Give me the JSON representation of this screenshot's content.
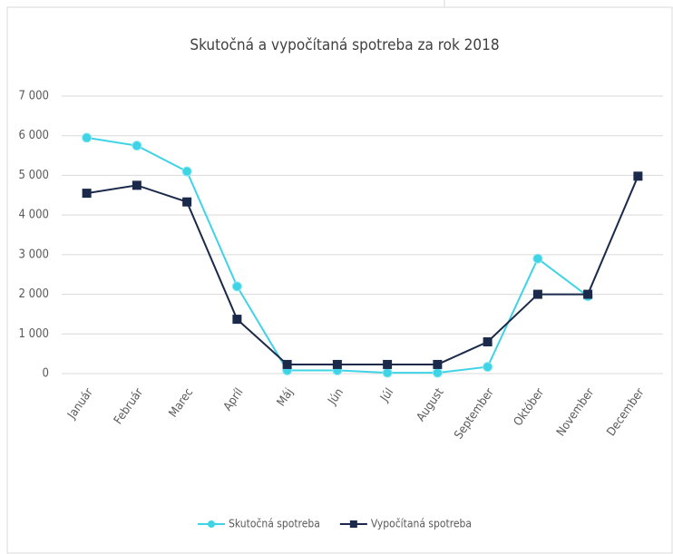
{
  "chart_data": {
    "type": "line",
    "title": "Skutočná a vypočítaná spotreba za rok 2018",
    "categories": [
      "Január",
      "Február",
      "Marec",
      "Apríl",
      "Máj",
      "Jún",
      "Júl",
      "August",
      "September",
      "Október",
      "November",
      "December"
    ],
    "series": [
      {
        "name": "Skutočná spotreba",
        "color": "#3fd3e6",
        "marker": "circle",
        "values": [
          5950,
          5750,
          5100,
          2200,
          80,
          80,
          20,
          20,
          170,
          2900,
          1950,
          null
        ]
      },
      {
        "name": "Vypočítaná spotreba",
        "color": "#1b2a4a",
        "marker": "square",
        "values": [
          4550,
          4750,
          4330,
          1370,
          230,
          230,
          230,
          230,
          800,
          2000,
          2000,
          4980
        ]
      }
    ],
    "ylim": [
      0,
      7000
    ],
    "yticks": [
      0,
      {
        "value": 1000,
        "label": "1 000"
      },
      {
        "value": 2000,
        "label": "2 000"
      },
      {
        "value": 3000,
        "label": "3 000"
      },
      {
        "value": 4000,
        "label": "4 000"
      },
      {
        "value": 5000,
        "label": "5 000"
      },
      {
        "value": 6000,
        "label": "6 000"
      },
      {
        "value": 7000,
        "label": "7 000"
      }
    ],
    "grid": true,
    "legend": "bottom"
  }
}
